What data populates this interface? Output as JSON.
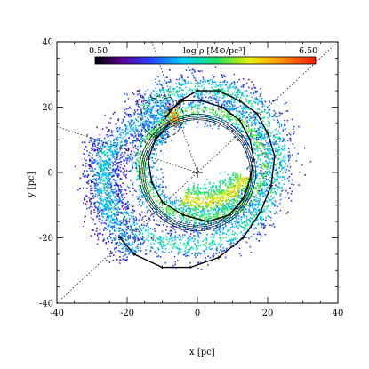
{
  "chart_data": {
    "type": "scatter",
    "title": "",
    "xlabel": "x [pc]",
    "ylabel": "y [pc]",
    "xlim": [
      -40,
      40
    ],
    "ylim": [
      -40,
      40
    ],
    "xticks": [
      -40,
      -20,
      0,
      20,
      40
    ],
    "yticks": [
      -40,
      -20,
      0,
      20,
      40
    ],
    "grid": false,
    "colorbar": {
      "label": "log ρ [M⊙/pc³]",
      "min_label": "0.50",
      "max_label": "6.50",
      "min": 0.5,
      "max": 6.5,
      "colormap": "rainbow"
    },
    "center_marker": {
      "x": 0,
      "y": 0,
      "symbol": "+"
    },
    "circles": [
      {
        "cx": 0,
        "cy": 0,
        "r": 15.0
      },
      {
        "cx": 0,
        "cy": 0,
        "r": 15.5
      },
      {
        "cx": 0,
        "cy": 0,
        "r": 16.0
      },
      {
        "cx": 0,
        "cy": 0,
        "r": 16.6
      }
    ],
    "small_dashed_circle": {
      "cx": -10,
      "cy": 17,
      "r": 6
    },
    "dotted_lines": [
      {
        "x1": -40,
        "y1": -40,
        "x2": 40,
        "y2": 40
      },
      {
        "x1": -40,
        "y1": 14,
        "x2": 0,
        "y2": 0
      },
      {
        "x1": -13,
        "y1": 40,
        "x2": 0,
        "y2": 0
      }
    ],
    "orbit_outer": [
      [
        -9,
        17
      ],
      [
        -5,
        22
      ],
      [
        0,
        25
      ],
      [
        6,
        25
      ],
      [
        12,
        22
      ],
      [
        17,
        18
      ],
      [
        20,
        12
      ],
      [
        22,
        5
      ],
      [
        21,
        -4
      ],
      [
        18,
        -12
      ],
      [
        13,
        -20
      ],
      [
        6,
        -26
      ],
      [
        -2,
        -29
      ],
      [
        -10,
        -29
      ],
      [
        -18,
        -25
      ],
      [
        -22,
        -20
      ]
    ],
    "orbit_inner": [
      [
        -8,
        15
      ],
      [
        -12,
        10
      ],
      [
        -14,
        4
      ],
      [
        -13,
        -3
      ],
      [
        -10,
        -9
      ],
      [
        -4,
        -13
      ],
      [
        3,
        -15
      ],
      [
        9,
        -13
      ],
      [
        13,
        -8
      ],
      [
        15,
        -2
      ],
      [
        16,
        4
      ],
      [
        15,
        10
      ],
      [
        12,
        16
      ],
      [
        7,
        20
      ],
      [
        1,
        22
      ],
      [
        -4,
        22
      ],
      [
        -8,
        19
      ]
    ],
    "clump": {
      "x": -7,
      "y": 17,
      "value": 6.2
    }
  }
}
